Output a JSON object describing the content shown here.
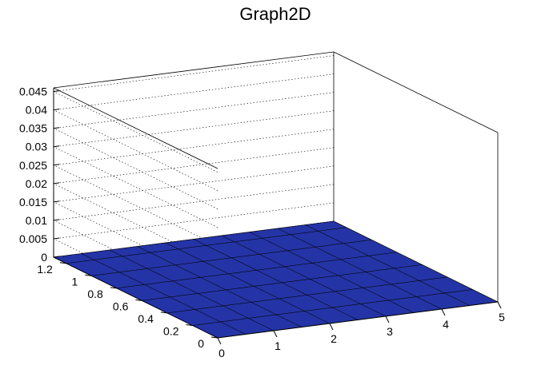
{
  "chart_data": {
    "type": "surface",
    "title": "Graph2D",
    "xlabel": "",
    "ylabel": "",
    "zlabel": "",
    "x_ticks": [
      "0",
      "1",
      "2",
      "3",
      "4",
      "5"
    ],
    "y_ticks": [
      "0",
      "0.2",
      "0.4",
      "0.6",
      "0.8",
      "1",
      "1.2"
    ],
    "z_ticks": [
      "0",
      "0.005",
      "0.01",
      "0.015",
      "0.02",
      "0.025",
      "0.03",
      "0.035",
      "0.04",
      "0.045"
    ],
    "xlim": [
      0,
      5
    ],
    "ylim": [
      0,
      1.3
    ],
    "zlim": [
      0,
      0.046
    ],
    "grid": true,
    "colormap": "viridis-like",
    "grid_x": [
      0.0,
      0.5,
      1.0,
      1.5,
      2.0,
      2.5,
      3.0,
      3.5,
      4.0,
      4.5,
      5.0
    ],
    "grid_y": [
      0.0,
      0.2,
      0.4,
      0.6,
      0.8,
      1.0,
      1.2,
      1.3
    ],
    "z_rows": [
      [
        0.0,
        0.0,
        0.0,
        0.0,
        0.0,
        0.0,
        0.0,
        0.0,
        0.0,
        0.0,
        0.0
      ],
      [
        0.0,
        0.0,
        0.0,
        0.0,
        0.0,
        0.0,
        0.0,
        0.0,
        0.0,
        0.0,
        0.0
      ],
      [
        0.0,
        0.0,
        0.0,
        0.0,
        0.0,
        0.0,
        0.0,
        0.0,
        0.0,
        0.0,
        0.0
      ],
      [
        0.0,
        0.0,
        0.0,
        0.0,
        0.0,
        0.0,
        0.0,
        0.0,
        0.0,
        0.0,
        0.0
      ],
      [
        0.0,
        0.0,
        0.0,
        0.0,
        0.0,
        0.0,
        0.0,
        0.0,
        0.0,
        0.0,
        0.0
      ],
      [
        0.0,
        0.0,
        0.0,
        0.0,
        0.0,
        0.0,
        0.0,
        0.0,
        0.0,
        0.0,
        0.0
      ],
      [
        0.0,
        0.0,
        0.0,
        0.0,
        0.0,
        0.0,
        0.0,
        0.0,
        0.0,
        0.0,
        0.0
      ],
      [
        0.0,
        0.0,
        0.0,
        0.0,
        0.0,
        0.0,
        0.0,
        0.0,
        0.0,
        0.0,
        0.0
      ]
    ]
  }
}
